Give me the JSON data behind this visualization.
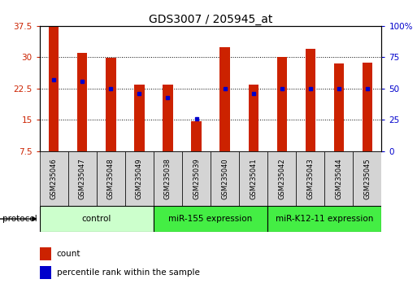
{
  "title": "GDS3007 / 205945_at",
  "samples": [
    "GSM235046",
    "GSM235047",
    "GSM235048",
    "GSM235049",
    "GSM235038",
    "GSM235039",
    "GSM235040",
    "GSM235041",
    "GSM235042",
    "GSM235043",
    "GSM235044",
    "GSM235045"
  ],
  "counts": [
    37.5,
    31.0,
    29.8,
    23.5,
    23.5,
    14.6,
    32.5,
    23.5,
    30.0,
    32.0,
    28.5,
    28.8
  ],
  "percentile_ranks_pct": [
    57,
    56,
    50,
    46,
    43,
    26,
    50,
    46,
    50,
    50,
    50,
    50
  ],
  "ylim_left": [
    7.5,
    37.5
  ],
  "ylim_right": [
    0,
    100
  ],
  "yticks_left": [
    7.5,
    15.0,
    22.5,
    30.0,
    37.5
  ],
  "yticks_left_labels": [
    "7.5",
    "15",
    "22.5",
    "30",
    "37.5"
  ],
  "yticks_right": [
    0,
    25,
    50,
    75,
    100
  ],
  "yticks_right_labels": [
    "0",
    "25",
    "50",
    "75",
    "100%"
  ],
  "group_colors": [
    "#ccffcc",
    "#44ee44",
    "#44ee44"
  ],
  "group_labels": [
    "control",
    "miR-155 expression",
    "miR-K12-11 expression"
  ],
  "group_starts": [
    0,
    4,
    8
  ],
  "group_ends": [
    3,
    7,
    11
  ],
  "bar_color": "#cc2200",
  "dot_color": "#0000cc",
  "title_fontsize": 10,
  "tick_fontsize": 7.5,
  "sample_fontsize": 6.0,
  "group_fontsize": 7.5,
  "legend_fontsize": 7.5
}
